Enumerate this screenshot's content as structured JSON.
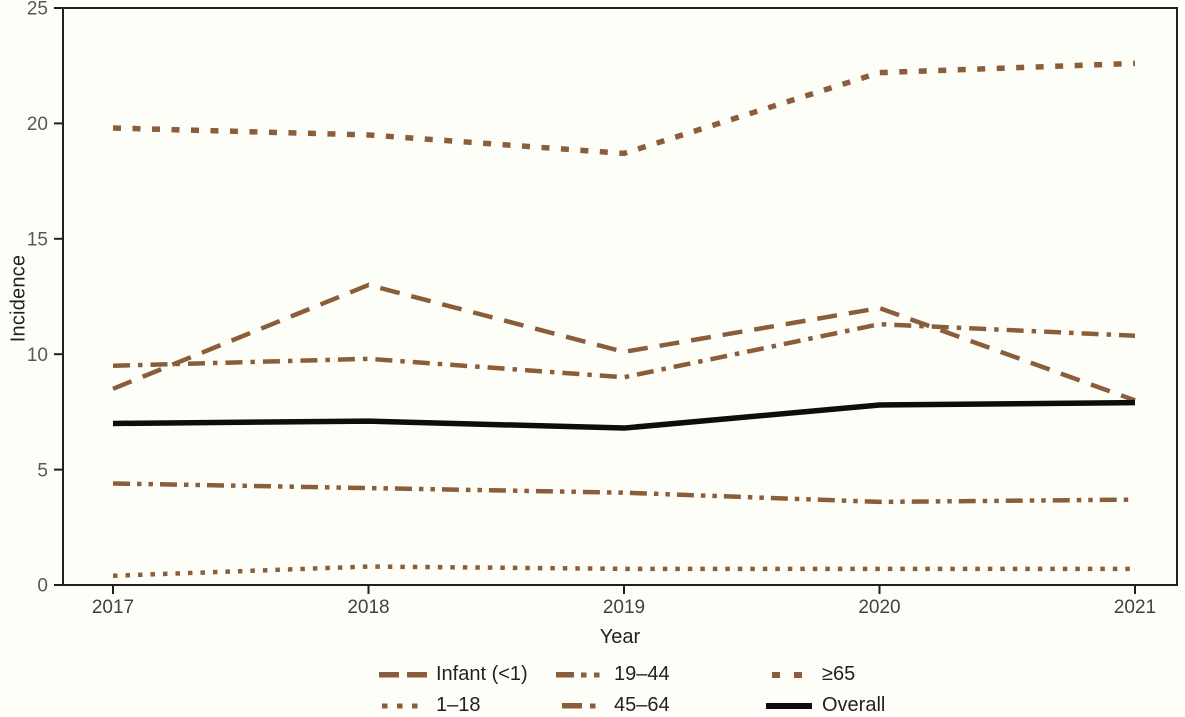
{
  "figure": {
    "xlabel": "Year",
    "ylabel": "Incidence"
  },
  "chart_data": {
    "type": "line",
    "x": [
      "2017",
      "2018",
      "2019",
      "2020",
      "2021"
    ],
    "xlabel": "Year",
    "ylabel": "Incidence",
    "ylim": [
      0,
      25
    ],
    "yticks": [
      0,
      5,
      10,
      15,
      20,
      25
    ],
    "grid": false,
    "legend_position": "bottom",
    "colors": {
      "brown": "#8B5E3B",
      "black": "#0d0d0d",
      "axis": "#231f20"
    },
    "series": [
      {
        "name": "Infant (<1)",
        "values": [
          8.5,
          13.0,
          10.1,
          12.0,
          8.0
        ],
        "color": "#8B5E3B",
        "dash": "long-dash"
      },
      {
        "name": "1–18",
        "values": [
          0.4,
          0.8,
          0.7,
          0.7,
          0.7
        ],
        "color": "#8B5E3B",
        "dash": "dot"
      },
      {
        "name": "19–44",
        "values": [
          4.4,
          4.2,
          4.0,
          3.6,
          3.7
        ],
        "color": "#8B5E3B",
        "dash": "dash-dot-dot"
      },
      {
        "name": "45–64",
        "values": [
          9.5,
          9.8,
          9.0,
          11.3,
          10.8
        ],
        "color": "#8B5E3B",
        "dash": "dash-dot"
      },
      {
        "name": "≥65",
        "values": [
          19.8,
          19.5,
          18.7,
          22.2,
          22.6
        ],
        "color": "#8B5E3B",
        "dash": "square-dot"
      },
      {
        "name": "Overall",
        "values": [
          7.0,
          7.1,
          6.8,
          7.8,
          7.9
        ],
        "color": "#0d0d0d",
        "dash": "solid"
      }
    ]
  }
}
